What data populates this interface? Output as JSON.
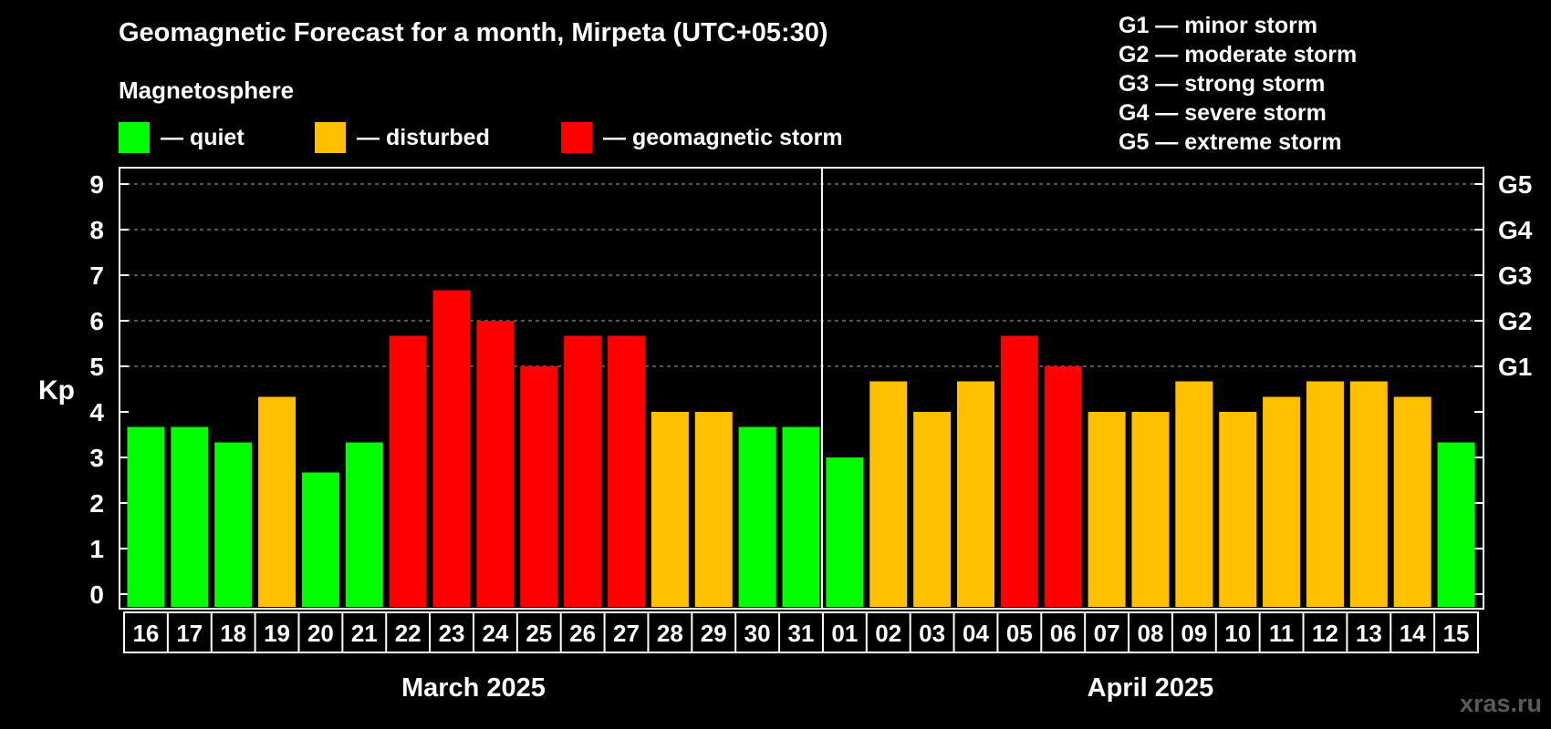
{
  "title": "Geomagnetic Forecast for a month, Mirpeta (UTC+05:30)",
  "subtitle": "Magnetosphere",
  "legend": [
    {
      "label": "— quiet",
      "color": "#00ff00"
    },
    {
      "label": "— disturbed",
      "color": "#ffc000"
    },
    {
      "label": "— geomagnetic storm",
      "color": "#ff0000"
    }
  ],
  "g_scale": [
    "G1 — minor storm",
    "G2 — moderate storm",
    "G3 — strong storm",
    "G4 — severe storm",
    "G5 — extreme storm"
  ],
  "watermark": "xras.ru",
  "colors": {
    "quiet": "#00ff00",
    "disturbed": "#ffc000",
    "storm": "#ff0000"
  },
  "chart_data": {
    "type": "bar",
    "ylabel": "Kp",
    "ylim": [
      0,
      9
    ],
    "yticks": [
      "0",
      "1",
      "2",
      "3",
      "4",
      "5",
      "6",
      "7",
      "8",
      "9"
    ],
    "right_ticks": [
      {
        "value": 5,
        "label": "G1"
      },
      {
        "value": 6,
        "label": "G2"
      },
      {
        "value": 7,
        "label": "G3"
      },
      {
        "value": 8,
        "label": "G4"
      },
      {
        "value": 9,
        "label": "G5"
      }
    ],
    "grid": "dashed horizontal at 5-9",
    "months": [
      "March 2025",
      "April 2025"
    ],
    "categories": [
      "16",
      "17",
      "18",
      "19",
      "20",
      "21",
      "22",
      "23",
      "24",
      "25",
      "26",
      "27",
      "28",
      "29",
      "30",
      "31",
      "01",
      "02",
      "03",
      "04",
      "05",
      "06",
      "07",
      "08",
      "09",
      "10",
      "11",
      "12",
      "13",
      "14",
      "15"
    ],
    "values": [
      3.67,
      3.67,
      3.33,
      4.33,
      2.67,
      3.33,
      5.67,
      6.67,
      6.0,
      5.0,
      5.67,
      5.67,
      4.0,
      4.0,
      3.67,
      3.67,
      3.0,
      4.67,
      4.0,
      4.67,
      5.67,
      5.0,
      4.0,
      4.0,
      4.67,
      4.0,
      4.33,
      4.67,
      4.67,
      4.33,
      3.33
    ],
    "status": [
      "quiet",
      "quiet",
      "quiet",
      "disturbed",
      "quiet",
      "quiet",
      "storm",
      "storm",
      "storm",
      "storm",
      "storm",
      "storm",
      "disturbed",
      "disturbed",
      "quiet",
      "quiet",
      "quiet",
      "disturbed",
      "disturbed",
      "disturbed",
      "storm",
      "storm",
      "disturbed",
      "disturbed",
      "disturbed",
      "disturbed",
      "disturbed",
      "disturbed",
      "disturbed",
      "disturbed",
      "quiet"
    ]
  }
}
